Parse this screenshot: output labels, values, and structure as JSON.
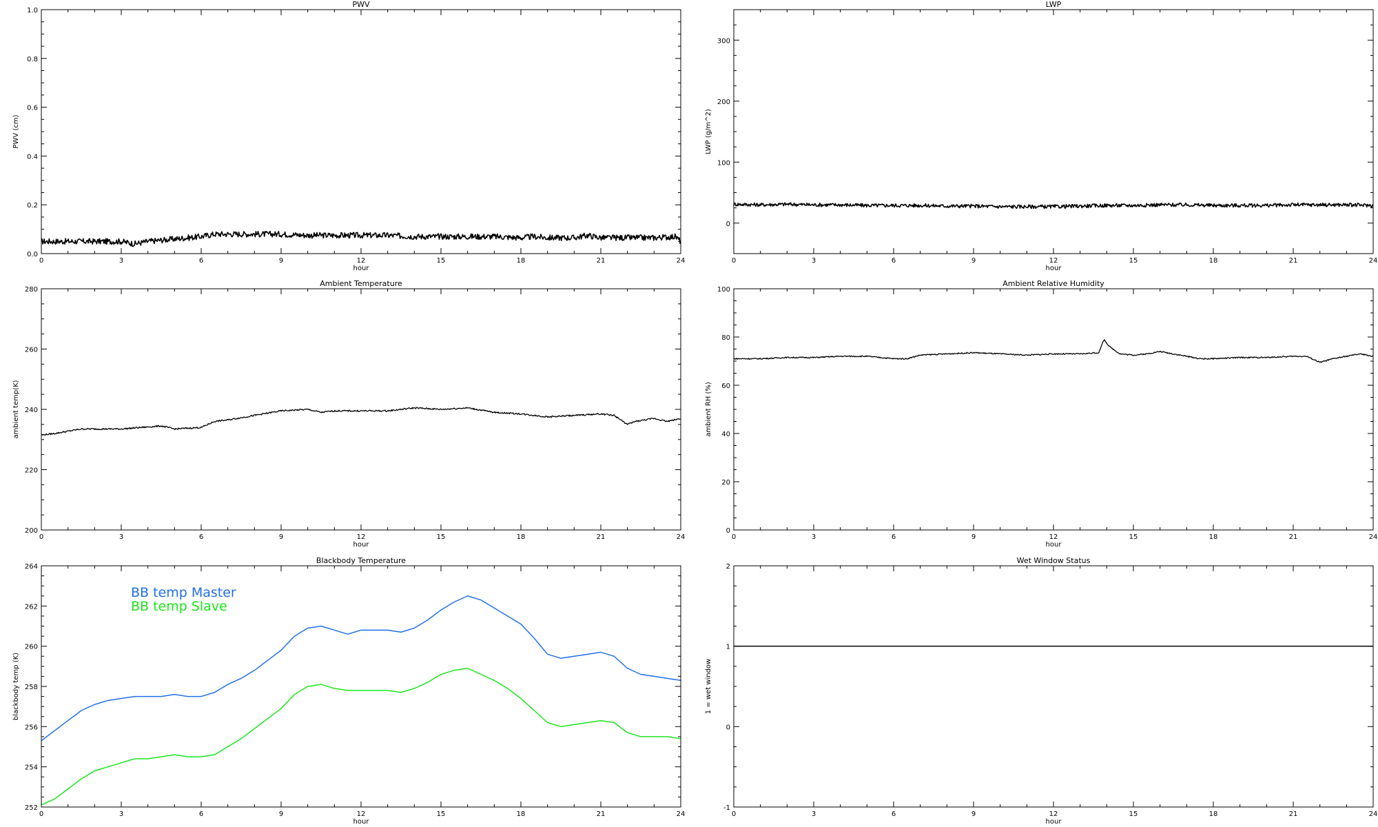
{
  "colors": {
    "axis": "#000000",
    "series_default": "#000000",
    "bb_master": "#1f6fe8",
    "bb_slave": "#1ae61a"
  },
  "chart_data": [
    {
      "id": "pwv",
      "type": "line",
      "title": "PWV",
      "xlabel": "hour",
      "ylabel": "PWV (cm)",
      "xlim": [
        0,
        24
      ],
      "ylim": [
        0,
        1.0
      ],
      "xticks": [
        0,
        3,
        6,
        9,
        12,
        15,
        18,
        21,
        24
      ],
      "yticks": [
        0.0,
        0.2,
        0.4,
        0.6,
        0.8,
        1.0
      ],
      "ytick_labels": [
        "0.0",
        "0.2",
        "0.4",
        "0.6",
        "0.8",
        "1.0"
      ],
      "xminor": 3,
      "yminor": 4,
      "series": [
        {
          "color": "#000000",
          "noise": 0.012,
          "width": 1.6,
          "x": [
            0,
            1,
            2,
            3,
            3.5,
            4,
            5,
            6,
            6.5,
            7,
            8,
            9,
            10,
            11,
            12,
            13,
            14,
            15,
            16,
            17,
            18,
            18.5,
            19,
            20,
            20.5,
            21,
            22,
            23,
            23.8,
            24
          ],
          "y": [
            0.05,
            0.05,
            0.05,
            0.05,
            0.04,
            0.05,
            0.06,
            0.07,
            0.08,
            0.08,
            0.08,
            0.08,
            0.075,
            0.075,
            0.075,
            0.075,
            0.07,
            0.07,
            0.07,
            0.07,
            0.065,
            0.07,
            0.065,
            0.065,
            0.075,
            0.065,
            0.065,
            0.065,
            0.07,
            0.05
          ]
        }
      ]
    },
    {
      "id": "lwp",
      "type": "line",
      "title": "LWP",
      "xlabel": "hour",
      "ylabel": "LWP (g/m^2)",
      "xlim": [
        0,
        24
      ],
      "ylim": [
        -50,
        350
      ],
      "xticks": [
        0,
        3,
        6,
        9,
        12,
        15,
        18,
        21,
        24
      ],
      "yticks": [
        0,
        100,
        200,
        300
      ],
      "ytick_labels": [
        "0",
        "100",
        "200",
        "300"
      ],
      "xminor": 3,
      "yminor": 4,
      "series": [
        {
          "color": "#000000",
          "noise": 3,
          "width": 1.6,
          "x": [
            0,
            1,
            2,
            3,
            4,
            5,
            6,
            7,
            8,
            9,
            10,
            11,
            12,
            13,
            14,
            15,
            16,
            17,
            18,
            19,
            20,
            21,
            22,
            23,
            24
          ],
          "y": [
            31,
            30,
            31,
            30,
            30,
            29,
            29,
            29,
            28,
            28,
            27,
            27,
            27,
            28,
            29,
            29,
            30,
            30,
            29,
            29,
            29,
            30,
            30,
            30,
            29
          ]
        }
      ]
    },
    {
      "id": "ambient-temp",
      "type": "line",
      "title": "Ambient Temperature",
      "xlabel": "hour",
      "ylabel": "ambient temp(K)",
      "xlim": [
        0,
        24
      ],
      "ylim": [
        200,
        280
      ],
      "xticks": [
        0,
        3,
        6,
        9,
        12,
        15,
        18,
        21,
        24
      ],
      "yticks": [
        200,
        220,
        240,
        260,
        280
      ],
      "ytick_labels": [
        "200",
        "220",
        "240",
        "260",
        "280"
      ],
      "xminor": 3,
      "yminor": 4,
      "series": [
        {
          "color": "#000000",
          "noise": 0.25,
          "width": 1.3,
          "x": [
            0,
            0.5,
            1.5,
            3,
            4.5,
            5,
            6,
            6.5,
            7,
            8,
            9,
            10,
            10.5,
            11,
            12,
            13,
            14,
            15,
            16,
            17,
            18,
            19,
            20,
            21,
            21.5,
            22,
            22.3,
            23,
            23.5,
            24
          ],
          "y": [
            231.5,
            232,
            233.5,
            233.5,
            234.5,
            233.5,
            234,
            236,
            236.5,
            238,
            239.5,
            240,
            239,
            239.5,
            239.5,
            239.5,
            240.5,
            240,
            240.5,
            239,
            238.5,
            237.5,
            238,
            238.5,
            238,
            235,
            236,
            237,
            236,
            237
          ]
        }
      ]
    },
    {
      "id": "ambient-rh",
      "type": "line",
      "title": "Ambient Relative Humidity",
      "xlabel": "hour",
      "ylabel": "ambient RH (%)",
      "xlim": [
        0,
        24
      ],
      "ylim": [
        0,
        100
      ],
      "xticks": [
        0,
        3,
        6,
        9,
        12,
        15,
        18,
        21,
        24
      ],
      "yticks": [
        0,
        20,
        40,
        60,
        80,
        100
      ],
      "ytick_labels": [
        "0",
        "20",
        "40",
        "60",
        "80",
        "100"
      ],
      "xminor": 3,
      "yminor": 4,
      "series": [
        {
          "color": "#000000",
          "noise": 0.25,
          "width": 1.3,
          "x": [
            0,
            1,
            2,
            3,
            4,
            5,
            6,
            6.5,
            7,
            8,
            9,
            10,
            11,
            12,
            13,
            13.7,
            13.9,
            14.1,
            14.5,
            15,
            15.5,
            16,
            17,
            17.5,
            18,
            19,
            20,
            21,
            21.5,
            22,
            22.5,
            23,
            23.5,
            24
          ],
          "y": [
            71,
            71,
            71.5,
            71.5,
            72,
            72,
            71,
            71,
            72.5,
            73,
            73.5,
            73,
            72.5,
            73,
            73,
            73.5,
            79,
            76,
            73,
            72.5,
            73,
            74,
            72,
            71,
            71,
            71.5,
            71.5,
            72,
            72,
            69.5,
            71,
            72,
            73,
            72
          ]
        }
      ]
    },
    {
      "id": "blackbody",
      "type": "line",
      "title": "Blackbody Temperature",
      "xlabel": "hour",
      "ylabel": "blackbody temp (K)",
      "xlim": [
        0,
        24
      ],
      "ylim": [
        252,
        264
      ],
      "xticks": [
        0,
        3,
        6,
        9,
        12,
        15,
        18,
        21,
        24
      ],
      "yticks": [
        252,
        254,
        256,
        258,
        260,
        262,
        264
      ],
      "ytick_labels": [
        "252",
        "254",
        "256",
        "258",
        "260",
        "262",
        "264"
      ],
      "xminor": 3,
      "yminor": 4,
      "legend": [
        "BB temp Master",
        "BB temp Slave"
      ],
      "series": [
        {
          "name": "BB temp Master",
          "color": "#1f6fe8",
          "width": 1.5,
          "x": [
            0,
            0.5,
            1,
            1.5,
            2,
            2.5,
            3,
            3.5,
            4,
            4.5,
            5,
            5.5,
            6,
            6.5,
            7,
            7.5,
            8,
            8.5,
            9,
            9.5,
            10,
            10.5,
            11,
            11.5,
            12,
            12.5,
            13,
            13.5,
            14,
            14.5,
            15,
            15.5,
            16,
            16.5,
            17,
            17.5,
            18,
            18.5,
            19,
            19.5,
            20,
            20.5,
            21,
            21.5,
            22,
            22.5,
            23,
            23.5,
            24
          ],
          "y": [
            255.3,
            255.8,
            256.3,
            256.8,
            257.1,
            257.3,
            257.4,
            257.5,
            257.5,
            257.5,
            257.6,
            257.5,
            257.5,
            257.7,
            258.1,
            258.4,
            258.8,
            259.3,
            259.8,
            260.5,
            260.9,
            261.0,
            260.8,
            260.6,
            260.8,
            260.8,
            260.8,
            260.7,
            260.9,
            261.3,
            261.8,
            262.2,
            262.5,
            262.3,
            261.9,
            261.5,
            261.1,
            260.4,
            259.6,
            259.4,
            259.5,
            259.6,
            259.7,
            259.5,
            258.9,
            258.6,
            258.5,
            258.4,
            258.3
          ]
        },
        {
          "name": "BB temp Slave",
          "color": "#1ae61a",
          "width": 1.5,
          "x": [
            0,
            0.5,
            1,
            1.5,
            2,
            2.5,
            3,
            3.5,
            4,
            4.5,
            5,
            5.5,
            6,
            6.5,
            7,
            7.5,
            8,
            8.5,
            9,
            9.5,
            10,
            10.5,
            11,
            11.5,
            12,
            12.5,
            13,
            13.5,
            14,
            14.5,
            15,
            15.5,
            16,
            16.5,
            17,
            17.5,
            18,
            18.5,
            19,
            19.5,
            20,
            20.5,
            21,
            21.5,
            22,
            22.5,
            23,
            23.5,
            24
          ],
          "y": [
            252.1,
            252.4,
            252.9,
            253.4,
            253.8,
            254.0,
            254.2,
            254.4,
            254.4,
            254.5,
            254.6,
            254.5,
            254.5,
            254.6,
            255.0,
            255.4,
            255.9,
            256.4,
            256.9,
            257.6,
            258.0,
            258.1,
            257.9,
            257.8,
            257.8,
            257.8,
            257.8,
            257.7,
            257.9,
            258.2,
            258.6,
            258.8,
            258.9,
            258.6,
            258.3,
            257.9,
            257.4,
            256.8,
            256.2,
            256.0,
            256.1,
            256.2,
            256.3,
            256.2,
            255.7,
            255.5,
            255.5,
            255.5,
            255.4
          ]
        }
      ]
    },
    {
      "id": "wet-window",
      "type": "line",
      "title": "Wet Window Status",
      "xlabel": "hour",
      "ylabel": "1 = wet window",
      "xlim": [
        0,
        24
      ],
      "ylim": [
        -1,
        2
      ],
      "xticks": [
        0,
        3,
        6,
        9,
        12,
        15,
        18,
        21,
        24
      ],
      "yticks": [
        -1,
        0,
        1,
        2
      ],
      "ytick_labels": [
        "-1",
        "0",
        "1",
        "2"
      ],
      "xminor": 3,
      "yminor": 4,
      "series": [
        {
          "color": "#000000",
          "width": 1.5,
          "x": [
            0,
            24
          ],
          "y": [
            1,
            1
          ]
        }
      ]
    }
  ]
}
